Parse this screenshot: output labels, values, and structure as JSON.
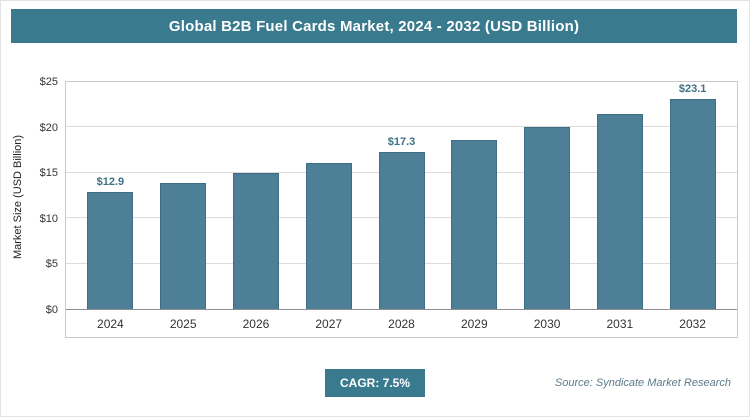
{
  "header": {
    "title": "Global B2B Fuel Cards Market, 2024 - 2032 (USD Billion)"
  },
  "chart_data": {
    "type": "bar",
    "title": "Global B2B Fuel Cards Market, 2024 - 2032 (USD Billion)",
    "categories": [
      "2024",
      "2025",
      "2026",
      "2027",
      "2028",
      "2029",
      "2030",
      "2031",
      "2032"
    ],
    "values": [
      12.9,
      13.9,
      15.0,
      16.1,
      17.3,
      18.6,
      20.0,
      21.5,
      23.1
    ],
    "value_labels": [
      {
        "index": 0,
        "text": "$12.9"
      },
      {
        "index": 4,
        "text": "$17.3"
      },
      {
        "index": 8,
        "text": "$23.1"
      }
    ],
    "xlabel": "",
    "ylabel": "Market Size (USD Billion)",
    "ylim": [
      0,
      25
    ],
    "yticks": [
      0,
      5,
      10,
      15,
      20,
      25
    ],
    "ytick_labels": [
      "$0",
      "$5",
      "$10",
      "$15",
      "$20",
      "$25"
    ],
    "grid": true,
    "legend": false,
    "bar_color": "#4d7f97"
  },
  "footer": {
    "cagr_label": "CAGR: 7.5%",
    "source": "Source: Syndicate Market Research"
  },
  "colors": {
    "header_bg": "#3a7a8e",
    "bar": "#4d7f97",
    "value_label": "#3d7186",
    "grid": "#dcdcdc"
  }
}
